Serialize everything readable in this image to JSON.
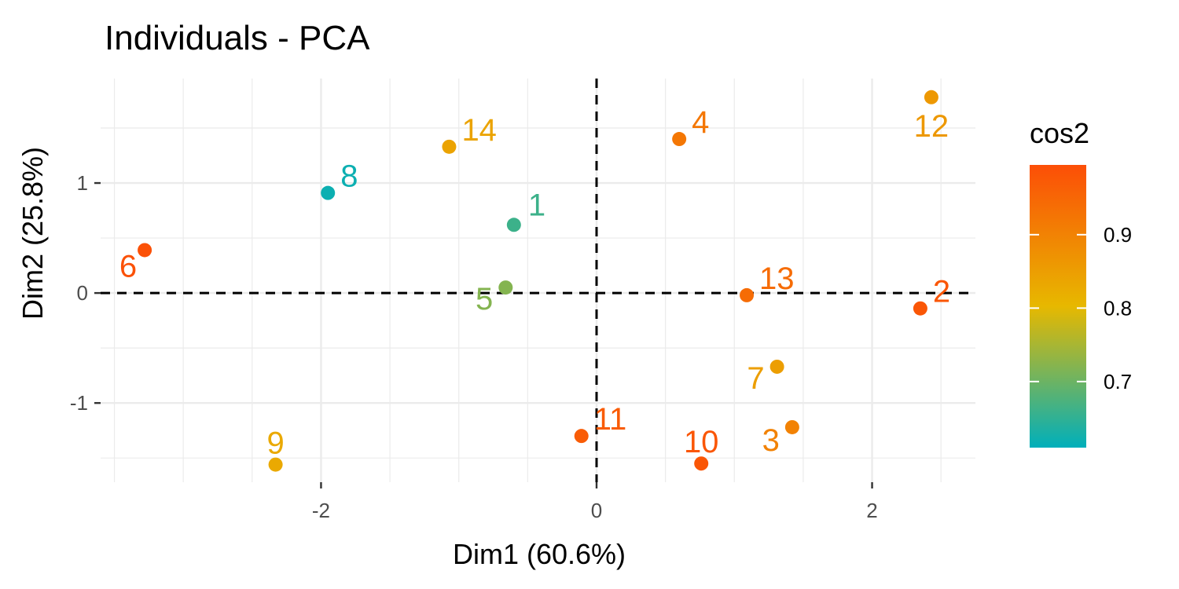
{
  "chart_data": {
    "type": "scatter",
    "title": "Individuals - PCA",
    "xlabel": "Dim1 (60.6%)",
    "ylabel": "Dim2 (25.8%)",
    "xlim": [
      -3.6,
      2.75
    ],
    "ylim": [
      -1.72,
      1.95
    ],
    "xticks": [
      -2,
      0,
      2
    ],
    "xtick_labels": [
      "-2",
      "0",
      "2"
    ],
    "yticks": [
      -1,
      0,
      1
    ],
    "ytick_labels": [
      "-1",
      "0",
      "1"
    ],
    "grid": true,
    "reference_lines": {
      "x": 0,
      "y": 0,
      "style": "dashed"
    },
    "legend": {
      "title": "cos2",
      "placement": "right",
      "range": [
        0.61,
        0.995
      ],
      "ticks": [
        0.7,
        0.8,
        0.9
      ],
      "tick_labels": [
        "0.7",
        "0.8",
        "0.9"
      ],
      "gradient": [
        "#00AFBB",
        "#E7B800",
        "#FC4E07"
      ]
    },
    "points": [
      {
        "label": "1",
        "x": -0.6,
        "y": 0.62,
        "cos2": 0.66
      },
      {
        "label": "2",
        "x": 2.35,
        "y": -0.14,
        "cos2": 0.98
      },
      {
        "label": "3",
        "x": 1.42,
        "y": -1.22,
        "cos2": 0.9
      },
      {
        "label": "4",
        "x": 0.6,
        "y": 1.4,
        "cos2": 0.92
      },
      {
        "label": "5",
        "x": -0.66,
        "y": 0.05,
        "cos2": 0.72
      },
      {
        "label": "6",
        "x": -3.28,
        "y": 0.39,
        "cos2": 0.99
      },
      {
        "label": "7",
        "x": 1.31,
        "y": -0.67,
        "cos2": 0.85
      },
      {
        "label": "8",
        "x": -1.95,
        "y": 0.91,
        "cos2": 0.62
      },
      {
        "label": "9",
        "x": -2.33,
        "y": -1.56,
        "cos2": 0.83
      },
      {
        "label": "10",
        "x": 0.76,
        "y": -1.55,
        "cos2": 0.98
      },
      {
        "label": "11",
        "x": -0.11,
        "y": -1.3,
        "cos2": 0.97
      },
      {
        "label": "12",
        "x": 2.43,
        "y": 1.78,
        "cos2": 0.86
      },
      {
        "label": "13",
        "x": 1.09,
        "y": -0.02,
        "cos2": 0.94
      },
      {
        "label": "14",
        "x": -1.07,
        "y": 1.33,
        "cos2": 0.84
      }
    ]
  }
}
